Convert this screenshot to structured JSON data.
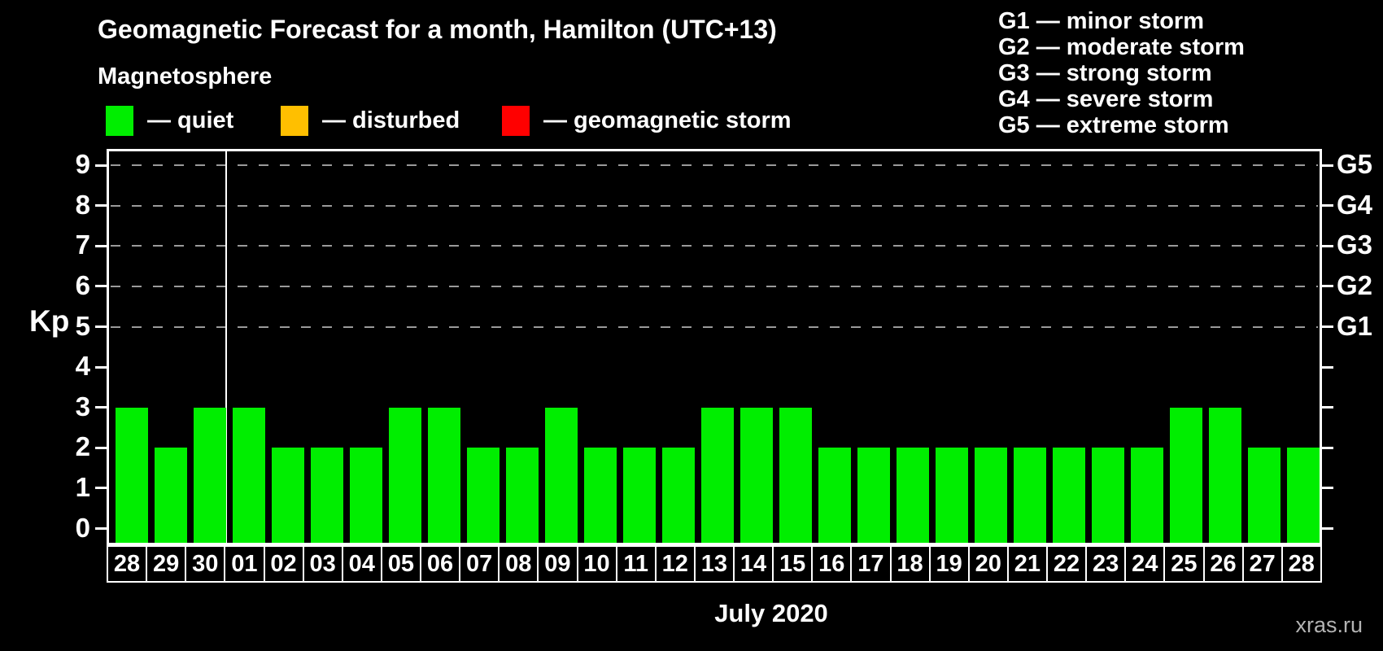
{
  "header": {
    "title": "Geomagnetic Forecast for a month, Hamilton (UTC+13)",
    "subtitle": "Magnetosphere"
  },
  "legend": {
    "items": [
      {
        "key": "quiet",
        "label": "— quiet",
        "color": "#00EE00"
      },
      {
        "key": "disturbed",
        "label": "— disturbed",
        "color": "#FFBF00"
      },
      {
        "key": "storm",
        "label": "— geomagnetic storm",
        "color": "#FF0000"
      }
    ]
  },
  "storm_legend": {
    "lines": [
      "G1 — minor storm",
      "G2 — moderate storm",
      "G3 — strong storm",
      "G4 — severe storm",
      "G5 — extreme storm"
    ]
  },
  "footer": {
    "month_label": "July 2020",
    "watermark": "xras.ru"
  },
  "chart_data": {
    "type": "bar",
    "title": "Geomagnetic Forecast for a month, Hamilton (UTC+13)",
    "ylabel": "Kp",
    "xlabel": "July 2020",
    "ylim": [
      0,
      9
    ],
    "yticks": [
      0,
      1,
      2,
      3,
      4,
      5,
      6,
      7,
      8,
      9
    ],
    "gridlines_kp": [
      5,
      6,
      7,
      8,
      9
    ],
    "grid_style": "dashed",
    "legend_position": "top",
    "categories": [
      "28",
      "29",
      "30",
      "01",
      "02",
      "03",
      "04",
      "05",
      "06",
      "07",
      "08",
      "09",
      "10",
      "11",
      "12",
      "13",
      "14",
      "15",
      "16",
      "17",
      "18",
      "19",
      "20",
      "21",
      "22",
      "23",
      "24",
      "25",
      "26",
      "27",
      "28"
    ],
    "values": [
      3,
      2,
      3,
      3,
      2,
      2,
      2,
      3,
      3,
      2,
      2,
      3,
      2,
      2,
      2,
      3,
      3,
      3,
      2,
      2,
      2,
      2,
      2,
      2,
      2,
      2,
      2,
      3,
      3,
      2,
      2
    ],
    "month_divider_after_index": 2,
    "right_axis": [
      {
        "label": "G5",
        "kp": 9
      },
      {
        "label": "G4",
        "kp": 8
      },
      {
        "label": "G3",
        "kp": 7
      },
      {
        "label": "G2",
        "kp": 6
      },
      {
        "label": "G1",
        "kp": 5
      }
    ],
    "bar_colors": {
      "quiet": "#00EE00",
      "disturbed": "#FFBF00",
      "storm": "#FF0000"
    },
    "color_rule": "kp<4 quiet, 4<=kp<5 disturbed, kp>=5 storm"
  }
}
